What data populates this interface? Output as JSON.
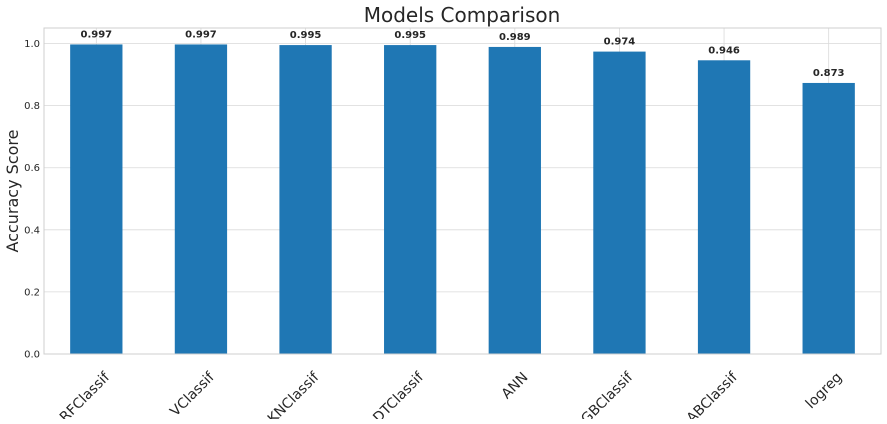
{
  "chart_data": {
    "type": "bar",
    "title": "Models Comparison",
    "xlabel": "",
    "ylabel": "Accuracy Score",
    "categories": [
      "RFClassif",
      "VClassif",
      "KNClassif",
      "DTClassif",
      "ANN",
      "GBClassif",
      "ABClassif",
      "logreg"
    ],
    "values": [
      0.997,
      0.997,
      0.995,
      0.995,
      0.989,
      0.974,
      0.946,
      0.873
    ],
    "data_labels": [
      "0.997",
      "0.997",
      "0.995",
      "0.995",
      "0.989",
      "0.974",
      "0.946",
      "0.873"
    ],
    "ylim": [
      0,
      1.05
    ],
    "yticks": [
      "0.0",
      "0.2",
      "0.4",
      "0.6",
      "0.8",
      "1.0"
    ],
    "bar_color": "#1f77b4",
    "grid": true,
    "legend": "none"
  }
}
